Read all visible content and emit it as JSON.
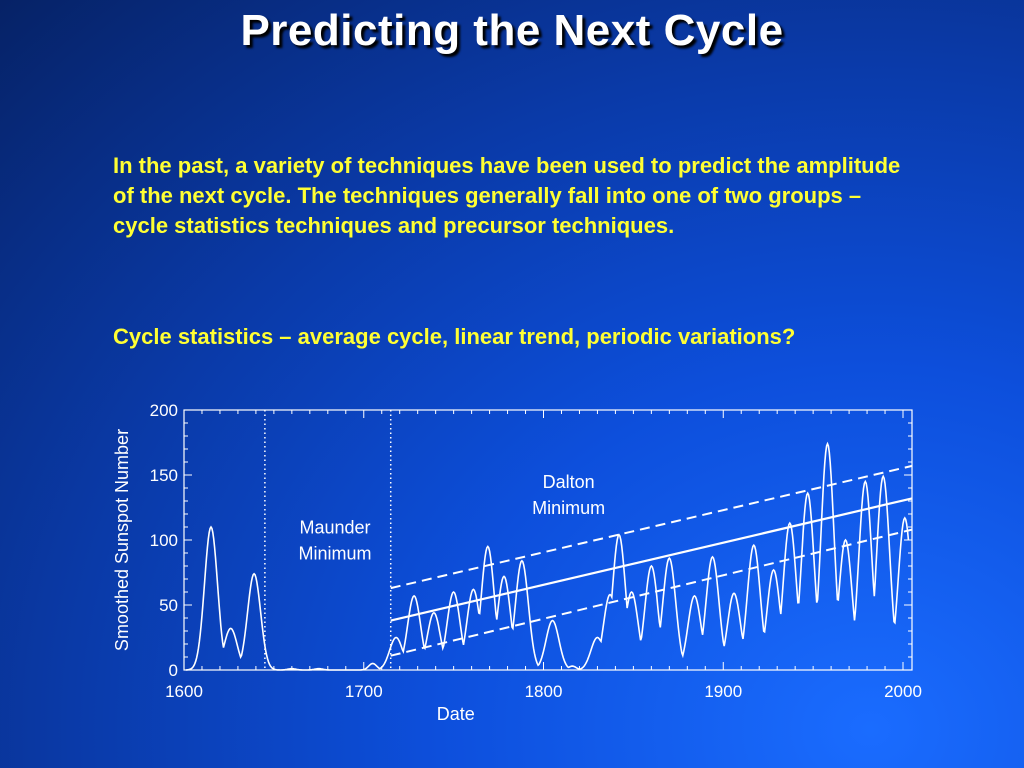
{
  "slide": {
    "title": "Predicting the Next Cycle",
    "paragraph1": "In the past, a variety of techniques have been used to predict the amplitude of the next cycle. The techniques generally fall into one of two groups – cycle statistics techniques and precursor techniques.",
    "paragraph2": "Cycle statistics – average cycle, linear trend, periodic variations?"
  },
  "colors": {
    "title": "#ffffff",
    "text": "#ffff33",
    "plot": "#ffffff"
  },
  "chart_data": {
    "type": "line",
    "xlabel": "Date",
    "ylabel": "Smoothed Sunspot Number",
    "xlim": [
      1600,
      2005
    ],
    "ylim": [
      0,
      200
    ],
    "xticks": [
      1600,
      1700,
      1800,
      1900,
      2000
    ],
    "yticks": [
      0,
      50,
      100,
      150,
      200
    ],
    "grid": false,
    "annotations": [
      {
        "id": "maunder",
        "lines": [
          "Maunder",
          "Minimum"
        ],
        "x": 1684,
        "y": 105
      },
      {
        "id": "dalton",
        "lines": [
          "Dalton",
          "Minimum"
        ],
        "x": 1814,
        "y": 140
      }
    ],
    "vlines": [
      1645,
      1715
    ],
    "peaks": [
      [
        1615,
        110
      ],
      [
        1626,
        32
      ],
      [
        1639,
        74
      ],
      [
        1660,
        1
      ],
      [
        1675,
        1
      ],
      [
        1705,
        5
      ],
      [
        1718,
        25
      ],
      [
        1728,
        57
      ],
      [
        1739,
        44
      ],
      [
        1750,
        60
      ],
      [
        1761,
        62
      ],
      [
        1769,
        95
      ],
      [
        1778,
        72
      ],
      [
        1788,
        84
      ],
      [
        1805,
        38
      ],
      [
        1816,
        3
      ],
      [
        1830,
        25
      ],
      [
        1837,
        58
      ],
      [
        1842,
        104
      ],
      [
        1849,
        60
      ],
      [
        1860,
        80
      ],
      [
        1870,
        86
      ],
      [
        1884,
        57
      ],
      [
        1894,
        87
      ],
      [
        1906,
        59
      ],
      [
        1917,
        96
      ],
      [
        1928,
        77
      ],
      [
        1937,
        113
      ],
      [
        1947,
        136
      ],
      [
        1958,
        174
      ],
      [
        1968,
        100
      ],
      [
        1979,
        145
      ],
      [
        1989,
        149
      ],
      [
        2001,
        117
      ]
    ],
    "trend": {
      "start": [
        1715,
        38
      ],
      "end": [
        2005,
        132
      ]
    },
    "trend_upper": {
      "start": [
        1715,
        63
      ],
      "end": [
        2005,
        157
      ]
    },
    "trend_lower": {
      "start": [
        1715,
        11
      ],
      "end": [
        2005,
        108
      ]
    }
  }
}
